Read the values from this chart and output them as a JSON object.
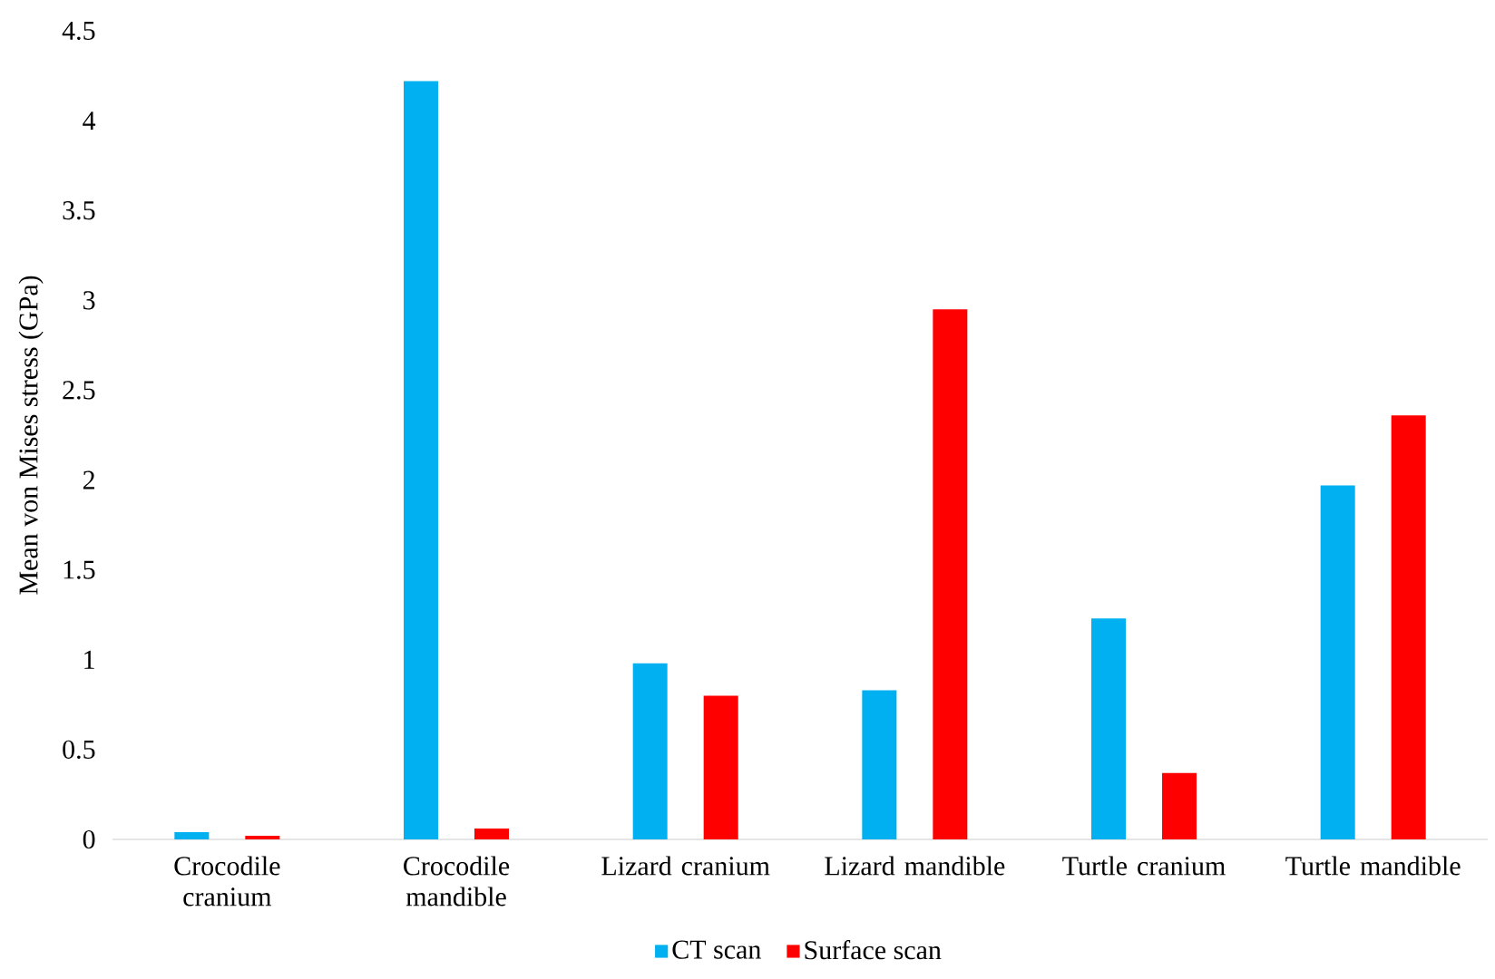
{
  "chart_data": {
    "type": "bar",
    "ylabel": "Mean von Mises stress (GPa)",
    "categories": [
      "Crocodile cranium",
      "Crocodile mandible",
      "Lizard cranium",
      "Lizard mandible",
      "Turtle cranium",
      "Turtle mandible"
    ],
    "series": [
      {
        "name": "CT scan",
        "color": "#00b0f0",
        "values": [
          0.04,
          4.22,
          0.98,
          0.83,
          1.23,
          1.97
        ]
      },
      {
        "name": "Surface scan",
        "color": "#ff0000",
        "values": [
          0.02,
          0.06,
          0.8,
          2.95,
          0.37,
          2.36
        ]
      }
    ],
    "ylim": [
      0,
      4.5
    ],
    "yticks": [
      0,
      0.5,
      1,
      1.5,
      2,
      2.5,
      3,
      3.5,
      4,
      4.5
    ],
    "legend": "bottom"
  }
}
